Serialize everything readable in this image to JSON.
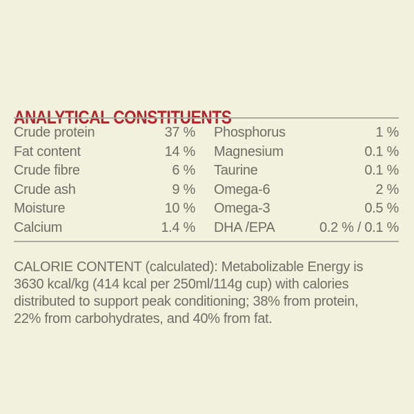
{
  "palette": {
    "background": "#f2f1dd",
    "heading_red": "#ad272e",
    "text_gray": "#6f6e66",
    "divider_gray": "#abaaa0"
  },
  "analytical_constituents": {
    "title": "ANALYTICAL CONSTITUENTS",
    "rows": [
      {
        "left_label": "Crude protein",
        "left_value": "37 %",
        "right_label": "Phosphorus",
        "right_value": "1 %"
      },
      {
        "left_label": "Fat content",
        "left_value": "14 %",
        "right_label": "Magnesium",
        "right_value": "0.1 %"
      },
      {
        "left_label": "Crude fibre",
        "left_value": "6 %",
        "right_label": "Taurine",
        "right_value": "0.1 %"
      },
      {
        "left_label": "Crude ash",
        "left_value": "9 %",
        "right_label": "Omega-6",
        "right_value": "2 %"
      },
      {
        "left_label": "Moisture",
        "left_value": "10 %",
        "right_label": "Omega-3",
        "right_value": "0.5 %"
      },
      {
        "left_label": "Calcium",
        "left_value": "1.4 %",
        "right_label": "DHA /EPA",
        "right_value": "0.2 % / 0.1 %"
      }
    ]
  },
  "calorie_content": {
    "text": "CALORIE CONTENT (calculated): Metabolizable Energy is\n3630 kcal/kg (414 kcal per 250ml/114g cup) with calories\ndistributed to support peak conditioning; 38% from protein,\n22% from carbohydrates, and 40% from fat."
  }
}
